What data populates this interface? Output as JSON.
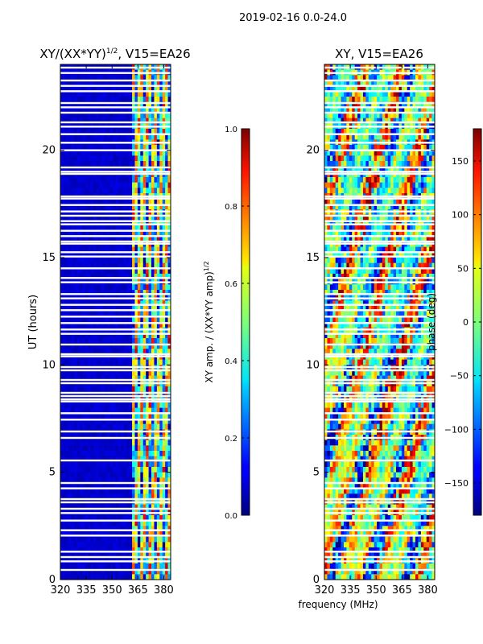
{
  "figure": {
    "suptitle": "2019-02-16 0.0-24.0",
    "shared_xlabel": "frequency (MHz)"
  },
  "chart_data": [
    {
      "type": "heatmap",
      "title_main": "XY/(XX*YY)",
      "title_sup": "1/2",
      "title_rest": ", V15=EA26",
      "ylabel": "UT (hours)",
      "xlim": [
        320,
        384
      ],
      "ylim": [
        0,
        24
      ],
      "x_ticks": [
        320,
        335,
        350,
        365,
        380
      ],
      "y_ticks": [
        0,
        5,
        10,
        15,
        20
      ],
      "x_tick_labels": [
        "320",
        "335",
        "350",
        "365",
        "380"
      ],
      "y_tick_labels": [
        "0",
        "5",
        "10",
        "15",
        "20"
      ],
      "colorbar": {
        "label_main": "XY amp. / (XX*YY amp)",
        "label_sup": "1/2",
        "range": [
          0.0,
          1.0
        ],
        "ticks": [
          0.0,
          0.2,
          0.4,
          0.6,
          0.8,
          1.0
        ],
        "tick_labels": [
          "0.0",
          "0.2",
          "0.4",
          "0.6",
          "0.8",
          "1.0"
        ]
      },
      "description": "Low normalized amplitude (~0.0-0.1) below 361 MHz; elevated, banded amplitude (~0.2-0.9) between 361 and 384 MHz"
    },
    {
      "type": "heatmap",
      "title": "XY, V15=EA26",
      "xlim": [
        320,
        384
      ],
      "ylim": [
        0,
        24
      ],
      "x_ticks": [
        320,
        335,
        350,
        365,
        380
      ],
      "y_ticks": [
        0,
        5,
        10,
        15,
        20
      ],
      "x_tick_labels": [
        "320",
        "335",
        "350",
        "365",
        "380"
      ],
      "y_tick_labels": [
        "0",
        "5",
        "10",
        "15",
        "20"
      ],
      "colorbar": {
        "label": "phase (deg)",
        "range": [
          -180,
          180
        ],
        "ticks": [
          -150,
          -100,
          -50,
          0,
          50,
          100,
          150
        ],
        "tick_labels": [
          "−150",
          "−100",
          "−50",
          "0",
          "50",
          "100",
          "150"
        ]
      },
      "description": "Phase values spread across the full -180 to 180 degree range with noisy, banded structure over all frequencies and times"
    }
  ],
  "flagged_rows_hours": [
    0.45,
    0.85,
    1.05,
    1.3,
    2.05,
    2.3,
    2.75,
    3.1,
    3.3,
    3.6,
    3.75,
    4.25,
    4.5,
    5.55,
    6.6,
    6.9,
    7.45,
    7.75,
    8.3,
    8.4,
    8.55,
    8.7,
    9.15,
    9.3,
    9.75,
    9.9,
    10.4,
    10.5,
    10.95,
    11.45,
    11.65,
    11.95,
    12.25,
    12.55,
    12.8,
    13.1,
    13.3,
    13.85,
    14.05,
    14.5,
    15.05,
    15.25,
    15.65,
    15.75,
    16.0,
    16.25,
    16.55,
    16.7,
    16.95,
    17.15,
    17.45,
    17.75,
    17.85,
    18.9,
    19.0,
    19.2,
    20.0,
    20.35,
    20.75,
    21.1,
    21.3,
    21.75,
    22.0,
    22.2,
    22.75,
    23.0,
    23.25,
    23.6,
    23.85
  ]
}
